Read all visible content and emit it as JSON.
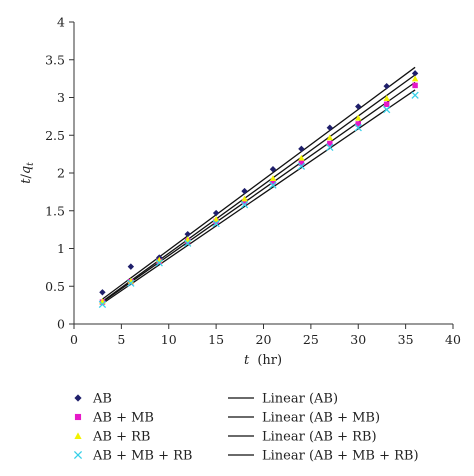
{
  "chart_data": {
    "type": "scatter",
    "xlabel_var": "t",
    "xlabel_unit": "(hr)",
    "ylabel_var": "t",
    "ylabel_sub": "q",
    "ylabel_subsub": "t",
    "xlim": [
      0,
      40
    ],
    "ylim": [
      0,
      4
    ],
    "x_ticks": [
      "0",
      "5",
      "10",
      "15",
      "20",
      "25",
      "30",
      "35",
      "40"
    ],
    "y_ticks": [
      "0",
      "0.5",
      "1",
      "1.5",
      "2",
      "2.5",
      "3",
      "3.5",
      "4"
    ],
    "grid": false,
    "legend_position": "bottom",
    "series": [
      {
        "name": "AB",
        "marker": "diamond",
        "color": "#1f1f6b",
        "x": [
          3,
          6,
          9,
          12,
          15,
          18,
          21,
          24,
          27,
          30,
          33,
          36
        ],
        "y": [
          0.42,
          0.76,
          0.88,
          1.19,
          1.47,
          1.76,
          2.05,
          2.32,
          2.6,
          2.88,
          3.15,
          3.32
        ]
      },
      {
        "name": "AB + MB",
        "marker": "square",
        "color": "#e619c8",
        "x": [
          3,
          6,
          9,
          12,
          15,
          18,
          21,
          24,
          27,
          30,
          33,
          36
        ],
        "y": [
          0.29,
          0.56,
          0.83,
          1.1,
          1.36,
          1.62,
          1.88,
          2.13,
          2.39,
          2.65,
          2.91,
          3.16
        ]
      },
      {
        "name": "AB + RB",
        "marker": "triangle",
        "color": "#f2f200",
        "x": [
          3,
          6,
          9,
          12,
          15,
          18,
          21,
          24,
          27,
          30,
          33,
          36
        ],
        "y": [
          0.3,
          0.57,
          0.85,
          1.12,
          1.39,
          1.66,
          1.93,
          2.2,
          2.47,
          2.73,
          2.99,
          3.25
        ]
      },
      {
        "name": "AB + MB + RB",
        "marker": "x",
        "color": "#38d0e8",
        "x": [
          3,
          6,
          9,
          12,
          15,
          18,
          21,
          24,
          27,
          30,
          33,
          36
        ],
        "y": [
          0.26,
          0.54,
          0.81,
          1.07,
          1.33,
          1.58,
          1.84,
          2.09,
          2.34,
          2.6,
          2.84,
          3.03
        ]
      }
    ],
    "linear_fits": [
      {
        "name": "Linear (AB)",
        "x": [
          3,
          36
        ],
        "y": [
          0.33,
          3.4
        ]
      },
      {
        "name": "Linear (AB + MB)",
        "x": [
          3,
          36
        ],
        "y": [
          0.29,
          3.2
        ]
      },
      {
        "name": "Linear (AB + RB)",
        "x": [
          3,
          36
        ],
        "y": [
          0.3,
          3.3
        ]
      },
      {
        "name": "Linear (AB + MB + RB)",
        "x": [
          3,
          36
        ],
        "y": [
          0.27,
          3.1
        ]
      }
    ]
  }
}
